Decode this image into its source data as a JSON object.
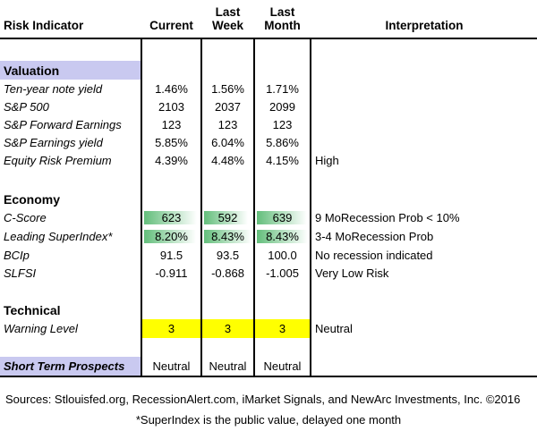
{
  "headers": {
    "indicator": "Risk Indicator",
    "current": "Current",
    "last_week_top": "Last",
    "last_week_bottom": "Week",
    "last_month_top": "Last",
    "last_month_bottom": "Month",
    "interpretation": "Interpretation"
  },
  "sections": {
    "valuation": "Valuation",
    "economy": "Economy",
    "technical": "Technical"
  },
  "valuation_rows": [
    {
      "name": "Ten-year note yield",
      "current": "1.46%",
      "last_week": "1.56%",
      "last_month": "1.71%",
      "interpretation": ""
    },
    {
      "name": "S&P 500",
      "current": "2103",
      "last_week": "2037",
      "last_month": "2099",
      "interpretation": ""
    },
    {
      "name": "S&P Forward Earnings",
      "current": "123",
      "last_week": "123",
      "last_month": "123",
      "interpretation": ""
    },
    {
      "name": "S&P Earnings yield",
      "current": "5.85%",
      "last_week": "6.04%",
      "last_month": "5.86%",
      "interpretation": ""
    },
    {
      "name": "Equity Risk Premium",
      "current": "4.39%",
      "last_week": "4.48%",
      "last_month": "4.15%",
      "interpretation": "High"
    }
  ],
  "economy_rows": [
    {
      "name": "C-Score",
      "current": "623",
      "last_week": "592",
      "last_month": "639",
      "interpretation": "9 MoRecession Prob < 10%",
      "bars": [
        0.96,
        0.93,
        0.99
      ]
    },
    {
      "name": "Leading SuperIndex*",
      "current": "8.20%",
      "last_week": "8.43%",
      "last_month": "8.43%",
      "interpretation": "3-4 MoRecession Prob",
      "bars": [
        0.95,
        1.0,
        1.0
      ]
    },
    {
      "name": "BCIp",
      "current": "91.5",
      "last_week": "93.5",
      "last_month": "100.0",
      "interpretation": "No recession indicated",
      "bars": [
        0.0,
        0.0,
        0.0
      ]
    },
    {
      "name": "SLFSI",
      "current": "-0.911",
      "last_week": "-0.868",
      "last_month": "-1.005",
      "interpretation": "Very Low Risk",
      "bars": [
        0.0,
        0.0,
        0.0
      ]
    }
  ],
  "technical_rows": [
    {
      "name": "Warning Level",
      "current": "3",
      "last_week": "3",
      "last_month": "3",
      "interpretation": "Neutral"
    }
  ],
  "prospects": {
    "name": "Short Term Prospects",
    "current": "Neutral",
    "last_week": "Neutral",
    "last_month": "Neutral"
  },
  "footer": {
    "sources": "Sources: Stlouisfed.org, RecessionAlert.com, iMarket Signals, and NewArc Investments, Inc. ©2016",
    "note": "*SuperIndex is the public value, delayed one month"
  },
  "colors": {
    "section_fill": "#c9c9f0",
    "bar_green": "#63be7b",
    "highlight": "#ffff00"
  }
}
